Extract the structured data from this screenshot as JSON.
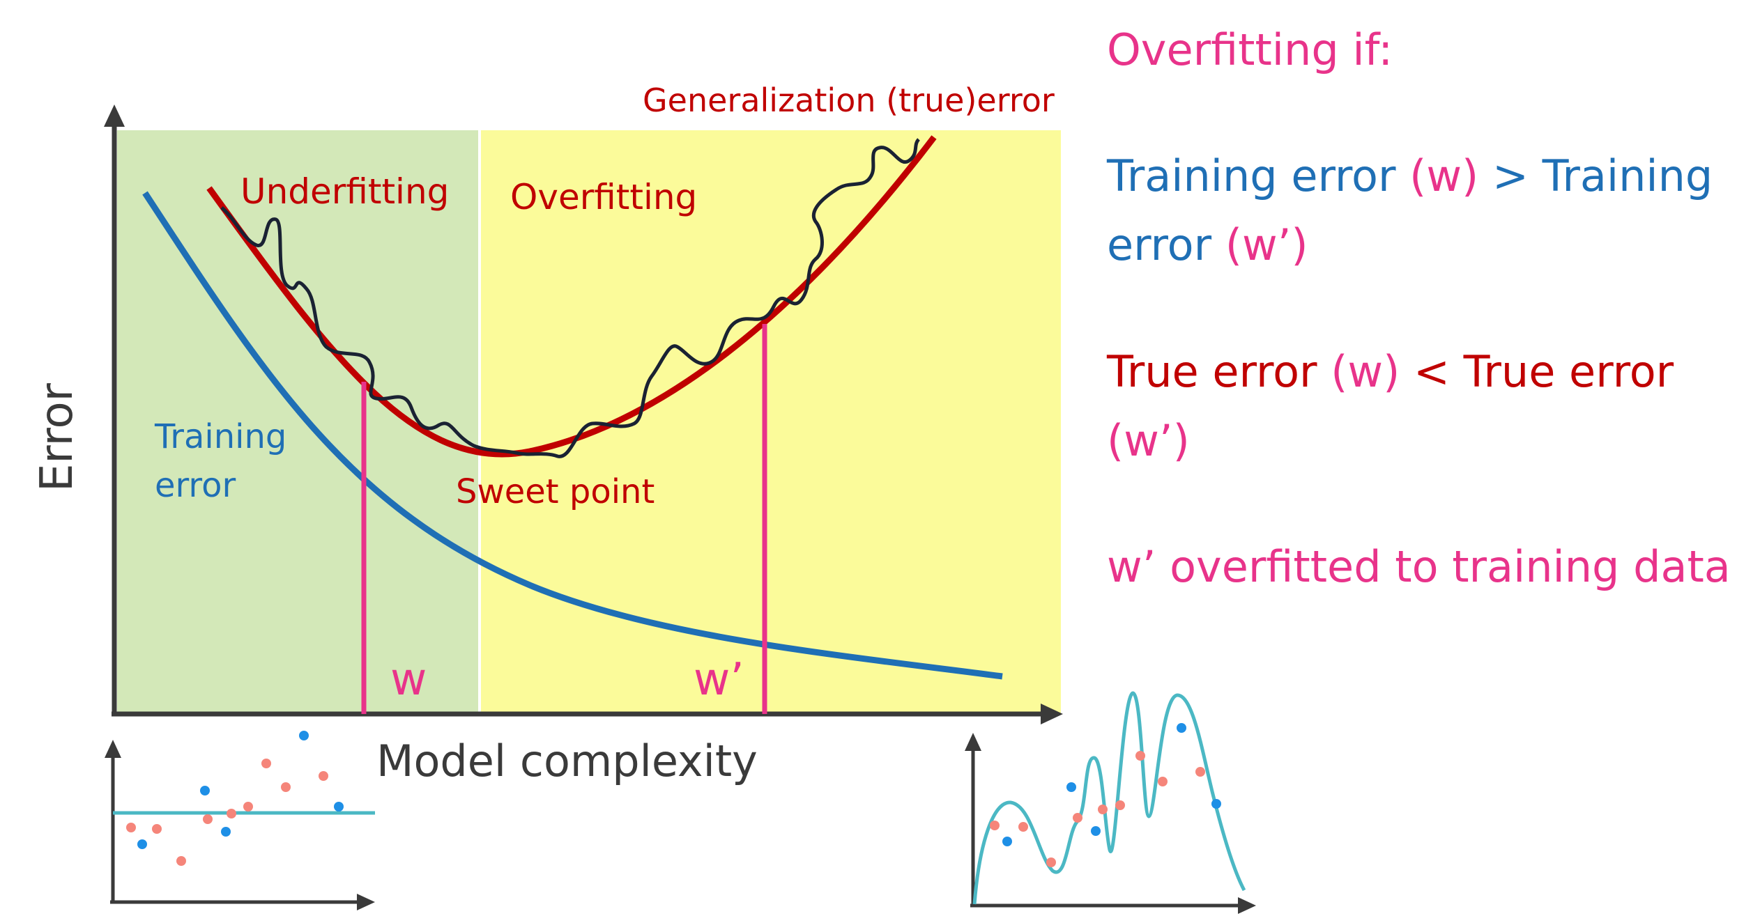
{
  "main_plot": {
    "y_axis_label": "Error",
    "x_axis_label": "Model complexity",
    "generalization_label": "Generalization (true)error",
    "underfitting_label": "Underfitting",
    "overfitting_label": "Overfitting",
    "training_label_line1": "Training",
    "training_label_line2": "error",
    "sweet_point_label": "Sweet point",
    "w_label": "w",
    "w_prime_label": "w’"
  },
  "panel": {
    "heading": "Overfitting if:",
    "cond1_a": "Training error ",
    "cond1_b": "(w)",
    "cond1_c": " > Training error ",
    "cond1_d": "(w’)",
    "cond2_a": "True error ",
    "cond2_b": "(w)",
    "cond2_c": " < True error ",
    "cond2_d": "(w’)",
    "conclusion": "w’ overfitted to training data"
  },
  "colors": {
    "underfit_region": "#d3e8b8",
    "overfit_region": "#fbfb9a",
    "training_curve": "#1f6fb5",
    "true_error_curve": "#c00000",
    "noisy_curve": "#1a2233",
    "marker_lines": "#e8338a",
    "fit_line": "#4bb8c4",
    "dot_red": "#f5857a",
    "dot_blue": "#1e8fe6"
  }
}
